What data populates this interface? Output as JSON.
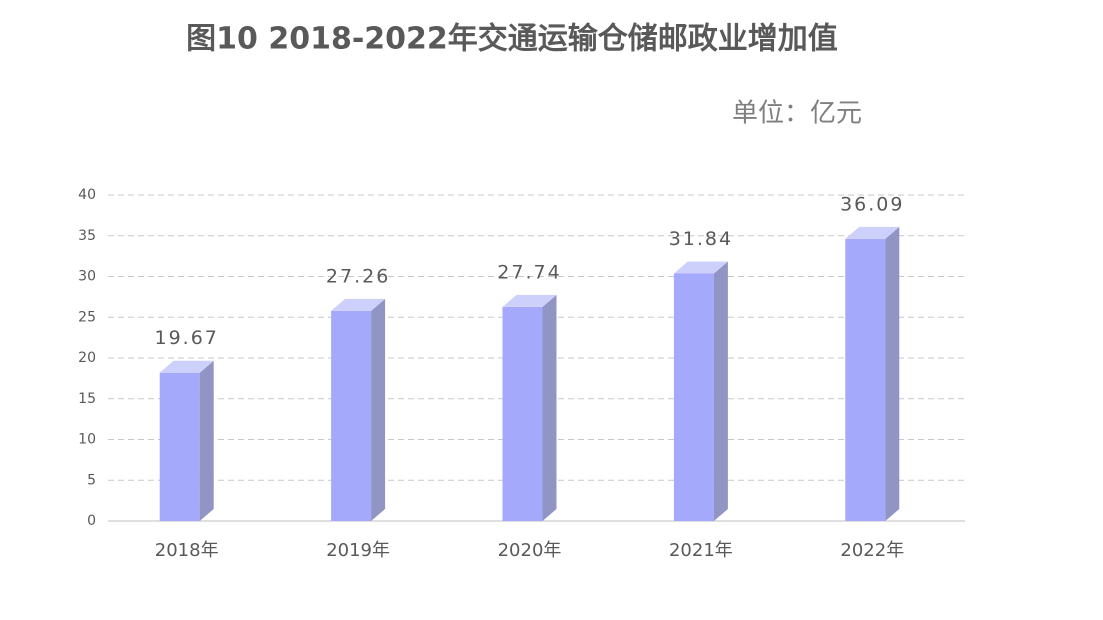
{
  "chart_data": {
    "type": "bar3d",
    "title": "图10 2018-2022年交通运输仓储邮政业增加值",
    "unit": "单位：亿元",
    "categories": [
      "2018年",
      "2019年",
      "2020年",
      "2021年",
      "2022年"
    ],
    "values": [
      19.67,
      27.26,
      27.74,
      31.84,
      36.09
    ],
    "color": "#a5a9fb",
    "ylim": [
      0,
      40
    ],
    "yticks": [
      0,
      5,
      10,
      15,
      20,
      25,
      30,
      35,
      40
    ],
    "grid": true
  }
}
